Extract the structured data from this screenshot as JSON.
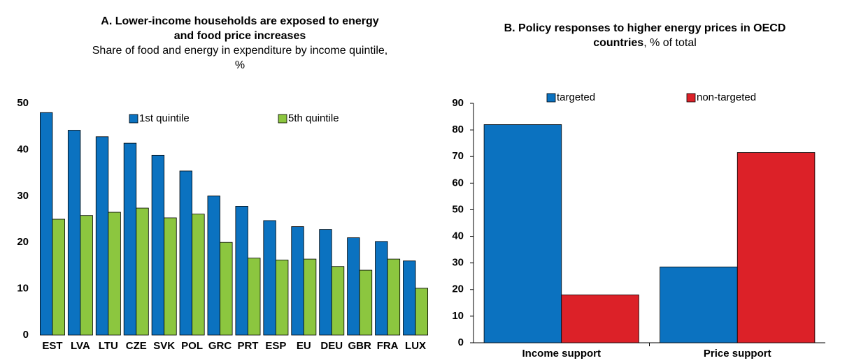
{
  "chart_data": [
    {
      "type": "bar",
      "title": "A. Lower-income households are exposed to energy and food price increases",
      "subtitle": "Share of food and energy in expenditure by income quintile, %",
      "categories": [
        "EST",
        "LVA",
        "LTU",
        "CZE",
        "SVK",
        "POL",
        "GRC",
        "PRT",
        "ESP",
        "EU",
        "DEU",
        "GBR",
        "FRA",
        "LUX"
      ],
      "series": [
        {
          "name": "1st quintile",
          "color": "#0b72c0",
          "values": [
            48,
            44.2,
            42.8,
            41.4,
            38.8,
            35.4,
            30,
            27.8,
            24.7,
            23.4,
            22.8,
            21,
            20.2,
            16
          ]
        },
        {
          "name": "5th quintile",
          "color": "#8cc63f",
          "values": [
            25,
            25.8,
            26.5,
            27.4,
            25.3,
            26.1,
            20,
            16.6,
            16.2,
            16.4,
            14.8,
            14,
            16.4,
            10.1
          ]
        }
      ],
      "ylim": [
        0,
        50
      ],
      "yticks": [
        0,
        10,
        20,
        30,
        40,
        50
      ],
      "grid": false,
      "legend": "inside-top"
    },
    {
      "type": "bar",
      "title": "B. Policy responses to higher energy prices in OECD countries",
      "subtitle": ", % of total",
      "categories": [
        "Income support",
        "Price support"
      ],
      "series": [
        {
          "name": "targeted",
          "color": "#0b72c0",
          "values": [
            82,
            28.5
          ]
        },
        {
          "name": "non-targeted",
          "color": "#dc2128",
          "values": [
            18,
            71.5
          ]
        }
      ],
      "ylim": [
        0,
        90
      ],
      "yticks": [
        0,
        10,
        20,
        30,
        40,
        50,
        60,
        70,
        80,
        90
      ],
      "grid": false,
      "legend": "top"
    }
  ]
}
